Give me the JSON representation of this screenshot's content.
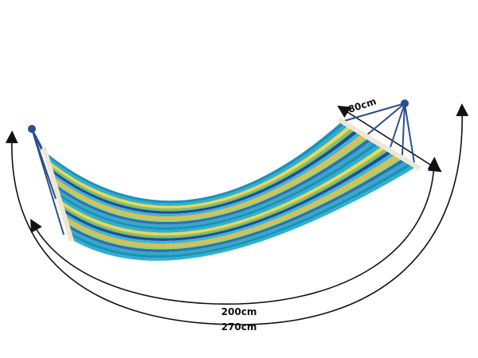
{
  "dimensions": {
    "width_label": "80cm",
    "bed_length_label": "200cm",
    "total_length_label": "270cm"
  },
  "colors": {
    "stripes": [
      "#1d8fc0",
      "#2bb3c9",
      "#f2d25a",
      "#7cc36a",
      "#1e4f9a",
      "#3ab7d6",
      "#e8b84a",
      "#9fd36f",
      "#2d6fb5",
      "#36a9c4"
    ],
    "rope": "#2a4f8a",
    "spreader_bar": "#efe7d4",
    "arrow": "#111111"
  }
}
